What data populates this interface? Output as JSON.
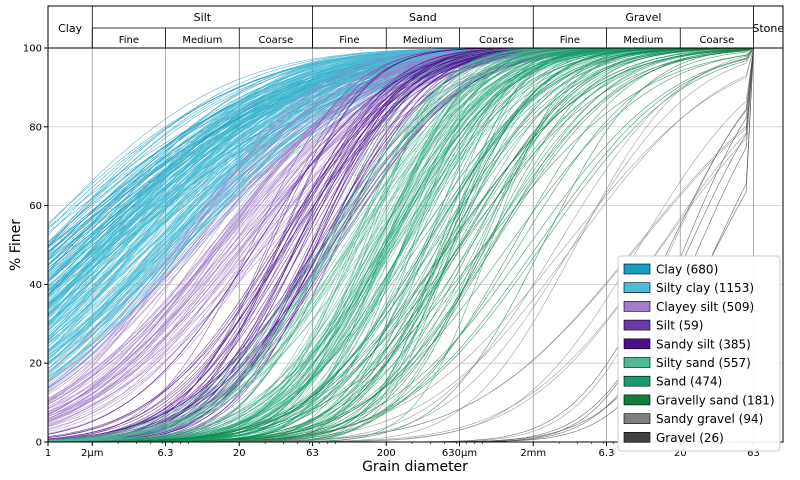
{
  "chart_data": {
    "type": "line",
    "title": "",
    "xlabel": "Grain diameter",
    "ylabel": "% Finer",
    "x_scale": "log",
    "x_unit": "mm",
    "xlim": [
      0.001,
      100
    ],
    "ylim": [
      0,
      100
    ],
    "yticks": [
      0,
      20,
      40,
      60,
      80,
      100
    ],
    "xticks": [
      {
        "label": "1",
        "x": 0.001
      },
      {
        "label": "2µm",
        "x": 0.002
      },
      {
        "label": "6.3",
        "x": 0.0063
      },
      {
        "label": "20",
        "x": 0.02
      },
      {
        "label": "63",
        "x": 0.063
      },
      {
        "label": "200",
        "x": 0.2
      },
      {
        "label": "630µm",
        "x": 0.63
      },
      {
        "label": "2mm",
        "x": 2
      },
      {
        "label": "6.3",
        "x": 6.3
      },
      {
        "label": "20",
        "x": 20
      },
      {
        "label": "63",
        "x": 63
      }
    ],
    "fraction_header": {
      "main": [
        {
          "label": "Clay",
          "from": 0.001,
          "to": 0.002
        },
        {
          "label": "Silt",
          "from": 0.002,
          "to": 0.063
        },
        {
          "label": "Sand",
          "from": 0.063,
          "to": 2
        },
        {
          "label": "Gravel",
          "from": 2,
          "to": 63
        },
        {
          "label": "Stone",
          "from": 63,
          "to": 100
        }
      ],
      "sub": [
        {
          "label": "Fine",
          "from": 0.002,
          "to": 0.0063
        },
        {
          "label": "Medium",
          "from": 0.0063,
          "to": 0.02
        },
        {
          "label": "Coarse",
          "from": 0.02,
          "to": 0.063
        },
        {
          "label": "Fine",
          "from": 0.063,
          "to": 0.2
        },
        {
          "label": "Medium",
          "from": 0.2,
          "to": 0.63
        },
        {
          "label": "Coarse",
          "from": 0.63,
          "to": 2
        },
        {
          "label": "Fine",
          "from": 2,
          "to": 6.3
        },
        {
          "label": "Medium",
          "from": 6.3,
          "to": 20
        },
        {
          "label": "Coarse",
          "from": 20,
          "to": 63
        }
      ]
    },
    "legend_position": "bottom-right",
    "series": [
      {
        "name": "Clay (680)",
        "color": "#1a9ec0",
        "count": 680,
        "d50_range": [
          0.0008,
          0.0035
        ],
        "spread": [
          0.95,
          1.4
        ]
      },
      {
        "name": "Silty clay (1153)",
        "color": "#49bcd6",
        "count": 1153,
        "d50_range": [
          0.002,
          0.009
        ],
        "spread": [
          0.8,
          1.2
        ]
      },
      {
        "name": "Clayey silt (509)",
        "color": "#a27cc9",
        "count": 509,
        "d50_range": [
          0.008,
          0.03
        ],
        "spread": [
          0.7,
          1.0
        ]
      },
      {
        "name": "Silt (59)",
        "color": "#6a3aa8",
        "count": 59,
        "d50_range": [
          0.02,
          0.06
        ],
        "spread": [
          0.45,
          0.7
        ]
      },
      {
        "name": "Sandy silt (385)",
        "color": "#4b0f8c",
        "count": 385,
        "d50_range": [
          0.03,
          0.1
        ],
        "spread": [
          0.45,
          0.75
        ]
      },
      {
        "name": "Silty sand (557)",
        "color": "#4fb894",
        "count": 557,
        "d50_range": [
          0.07,
          0.3
        ],
        "spread": [
          0.4,
          0.8
        ]
      },
      {
        "name": "Sand (474)",
        "color": "#179b6b",
        "count": 474,
        "d50_range": [
          0.15,
          1.0
        ],
        "spread": [
          0.35,
          0.75
        ]
      },
      {
        "name": "Gravelly sand (181)",
        "color": "#0f7d3b",
        "count": 181,
        "d50_range": [
          0.4,
          2.5
        ],
        "spread": [
          0.45,
          0.85
        ]
      },
      {
        "name": "Sandy gravel (94)",
        "color": "#808080",
        "count": 94,
        "d50_range": [
          2.5,
          20
        ],
        "spread": [
          0.45,
          0.9
        ]
      },
      {
        "name": "Gravel (26)",
        "color": "#404040",
        "count": 26,
        "d50_range": [
          10,
          40
        ],
        "spread": [
          0.3,
          0.6
        ]
      }
    ]
  }
}
